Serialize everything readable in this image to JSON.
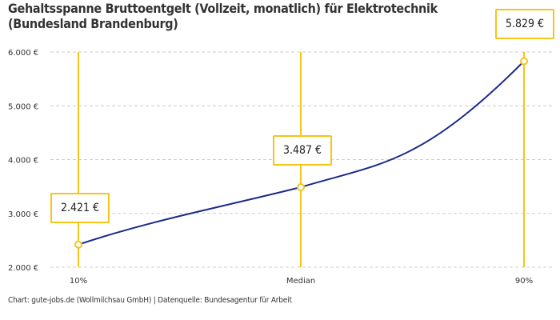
{
  "title": "Gehaltsspanne Bruttoentgelt (Vollzeit, monatlich) für Elektrotechnik (Bundesland Brandenburg)",
  "source": "Chart: gute-jobs.de (Wollmilchsau GmbH) | Datenquelle: Bundesagentur für Arbeit",
  "colors": {
    "line": "#1a2a8c",
    "accent": "#f5c518",
    "grid": "#cccccc"
  },
  "chart_data": {
    "type": "line",
    "categories": [
      "10%",
      "Median",
      "90%"
    ],
    "values": [
      2421,
      3487,
      5829
    ],
    "data_labels": [
      "2.421 €",
      "3.487 €",
      "5.829 €"
    ],
    "ylim": [
      2000,
      6000
    ],
    "yticks": [
      2000,
      3000,
      4000,
      5000,
      6000
    ],
    "ytick_labels": [
      "2.000 €",
      "3.000 €",
      "4.000 €",
      "5.000 €",
      "6.000 €"
    ],
    "grid": true
  }
}
